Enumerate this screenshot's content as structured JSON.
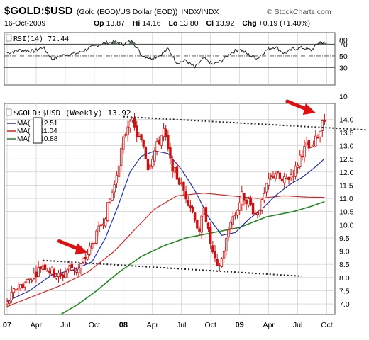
{
  "header": {
    "symbol": "$GOLD:$USD",
    "description": "(Gold (EOD)/US Dollar (EOD))",
    "exchange": "INDX/INDX",
    "watermark": "© StockCharts.com",
    "date": "16-Oct-2009",
    "op_label": "Op",
    "op": "13.87",
    "hi_label": "Hi",
    "hi": "14.16",
    "lo_label": "Lo",
    "lo": "13.80",
    "cl_label": "Cl",
    "cl": "13.92",
    "chg_label": "Chg",
    "chg": "+0.19 (+1.40%)"
  },
  "rsi_panel": {
    "label": "RSI(14) 72.44",
    "ticks": [
      30,
      50,
      70
    ],
    "extra_ticks": [
      80,
      10
    ],
    "ylim": [
      0,
      90
    ]
  },
  "price_panel": {
    "label": "$GOLD:$USD (Weekly) 13.92",
    "legend": [
      {
        "prefix": "MA(",
        "value": "12.51",
        "color": "#1f2f9f"
      },
      {
        "prefix": "MA(",
        "value": "11.04",
        "color": "#e02020"
      },
      {
        "prefix": "MA(",
        "value": "10.88",
        "color": "#1c7a1c"
      }
    ]
  },
  "colors": {
    "ma_short": "#2233aa",
    "ma_mid": "#dd2222",
    "ma_long": "#228822",
    "candle": "#cc1111",
    "arrow": "#e01010",
    "grid": "#c8c8c8"
  },
  "chart_data": {
    "type": "line",
    "ylim": [
      6.6,
      14.6
    ],
    "y_ticks": [
      7.0,
      7.5,
      8.0,
      8.5,
      9.0,
      9.5,
      10.0,
      10.5,
      11.0,
      11.5,
      12.0,
      12.5,
      13.0,
      13.5,
      14.0
    ],
    "x_ticks": [
      {
        "label": "07",
        "t": 0
      },
      {
        "label": "Apr",
        "t": 13
      },
      {
        "label": "Jul",
        "t": 26
      },
      {
        "label": "Oct",
        "t": 39
      },
      {
        "label": "08",
        "t": 52
      },
      {
        "label": "Apr",
        "t": 65
      },
      {
        "label": "Jul",
        "t": 78
      },
      {
        "label": "Oct",
        "t": 91
      },
      {
        "label": "09",
        "t": 104
      },
      {
        "label": "Apr",
        "t": 117
      },
      {
        "label": "Jul",
        "t": 130
      },
      {
        "label": "Oct",
        "t": 143
      }
    ],
    "price_anchors": [
      [
        0,
        7.0
      ],
      [
        4,
        7.6
      ],
      [
        8,
        7.8
      ],
      [
        12,
        8.1
      ],
      [
        16,
        8.5
      ],
      [
        20,
        8.2
      ],
      [
        24,
        8.0
      ],
      [
        28,
        8.4
      ],
      [
        32,
        8.3
      ],
      [
        36,
        8.9
      ],
      [
        40,
        9.6
      ],
      [
        44,
        10.4
      ],
      [
        48,
        11.5
      ],
      [
        50,
        12.4
      ],
      [
        52,
        13.2
      ],
      [
        55,
        14.1
      ],
      [
        58,
        13.4
      ],
      [
        61,
        13.0
      ],
      [
        63,
        12.2
      ],
      [
        66,
        12.8
      ],
      [
        70,
        13.6
      ],
      [
        73,
        12.4
      ],
      [
        76,
        11.8
      ],
      [
        79,
        11.3
      ],
      [
        82,
        10.7
      ],
      [
        84,
        10.3
      ],
      [
        86,
        9.6
      ],
      [
        88,
        10.8
      ],
      [
        90,
        9.7
      ],
      [
        92,
        8.9
      ],
      [
        94,
        8.3
      ],
      [
        96,
        8.7
      ],
      [
        98,
        9.4
      ],
      [
        100,
        10.2
      ],
      [
        102,
        10.4
      ],
      [
        105,
        11.1
      ],
      [
        108,
        10.9
      ],
      [
        111,
        10.4
      ],
      [
        114,
        10.8
      ],
      [
        117,
        11.7
      ],
      [
        120,
        12.0
      ],
      [
        123,
        11.6
      ],
      [
        126,
        11.8
      ],
      [
        129,
        12.1
      ],
      [
        131,
        12.6
      ],
      [
        134,
        13.0
      ],
      [
        136,
        12.8
      ],
      [
        138,
        13.2
      ],
      [
        140,
        13.6
      ],
      [
        141,
        14.1
      ],
      [
        142,
        13.92
      ]
    ],
    "ma_short_anchors": [
      [
        0,
        7.1
      ],
      [
        10,
        7.5
      ],
      [
        20,
        8.1
      ],
      [
        30,
        8.3
      ],
      [
        38,
        8.6
      ],
      [
        44,
        9.5
      ],
      [
        50,
        10.8
      ],
      [
        55,
        12.0
      ],
      [
        60,
        12.6
      ],
      [
        66,
        12.8
      ],
      [
        72,
        12.7
      ],
      [
        78,
        12.1
      ],
      [
        84,
        11.3
      ],
      [
        90,
        10.3
      ],
      [
        96,
        9.6
      ],
      [
        102,
        9.7
      ],
      [
        108,
        10.2
      ],
      [
        114,
        10.6
      ],
      [
        120,
        11.1
      ],
      [
        126,
        11.5
      ],
      [
        132,
        11.8
      ],
      [
        138,
        12.2
      ],
      [
        142,
        12.51
      ]
    ],
    "ma_mid_anchors": [
      [
        0,
        6.9
      ],
      [
        12,
        7.3
      ],
      [
        24,
        7.7
      ],
      [
        36,
        8.2
      ],
      [
        48,
        9.0
      ],
      [
        58,
        9.9
      ],
      [
        66,
        10.6
      ],
      [
        76,
        11.1
      ],
      [
        88,
        11.2
      ],
      [
        100,
        11.1
      ],
      [
        112,
        11.0
      ],
      [
        124,
        11.1
      ],
      [
        134,
        11.05
      ],
      [
        142,
        11.04
      ]
    ],
    "ma_long_anchors": [
      [
        24,
        6.6
      ],
      [
        32,
        7.0
      ],
      [
        40,
        7.5
      ],
      [
        50,
        8.2
      ],
      [
        60,
        8.8
      ],
      [
        70,
        9.2
      ],
      [
        80,
        9.5
      ],
      [
        92,
        9.7
      ],
      [
        104,
        9.9
      ],
      [
        116,
        10.3
      ],
      [
        128,
        10.5
      ],
      [
        136,
        10.7
      ],
      [
        142,
        10.88
      ]
    ],
    "rsi_anchors": [
      [
        0,
        55
      ],
      [
        6,
        60
      ],
      [
        12,
        58
      ],
      [
        16,
        65
      ],
      [
        20,
        45
      ],
      [
        26,
        52
      ],
      [
        32,
        55
      ],
      [
        36,
        62
      ],
      [
        40,
        68
      ],
      [
        44,
        72
      ],
      [
        48,
        74
      ],
      [
        52,
        70
      ],
      [
        56,
        76
      ],
      [
        60,
        52
      ],
      [
        64,
        46
      ],
      [
        68,
        50
      ],
      [
        72,
        62
      ],
      [
        76,
        38
      ],
      [
        80,
        42
      ],
      [
        84,
        30
      ],
      [
        88,
        46
      ],
      [
        92,
        35
      ],
      [
        96,
        42
      ],
      [
        100,
        55
      ],
      [
        104,
        62
      ],
      [
        108,
        52
      ],
      [
        112,
        46
      ],
      [
        116,
        60
      ],
      [
        120,
        66
      ],
      [
        124,
        54
      ],
      [
        128,
        62
      ],
      [
        132,
        64
      ],
      [
        136,
        60
      ],
      [
        140,
        74
      ],
      [
        142,
        72.44
      ]
    ],
    "resistance_line": [
      [
        52,
        14.1
      ],
      [
        146,
        13.6
      ]
    ],
    "support_line": [
      [
        16,
        8.65
      ],
      [
        132,
        8.05
      ]
    ],
    "arrows": [
      {
        "t": 36,
        "y": 8.95
      },
      {
        "t": 138,
        "y": 14.25
      }
    ]
  }
}
